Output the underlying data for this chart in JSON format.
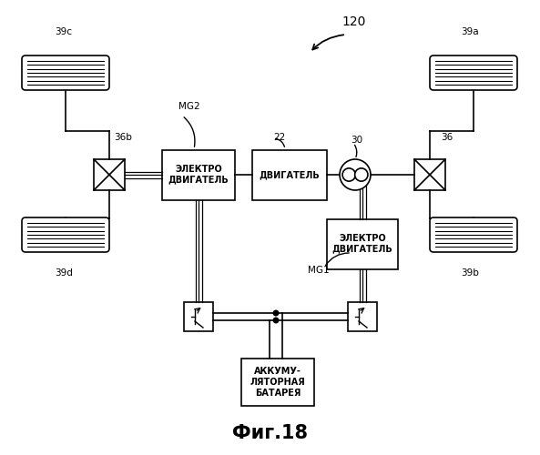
{
  "title": "Фиг.18",
  "bg_color": "#ffffff",
  "label_120": "120",
  "label_22": "22",
  "label_30": "30",
  "label_MG2": "MG2",
  "label_MG1": "MG1",
  "label_36b": "36b",
  "label_36": "36",
  "label_39a": "39a",
  "label_39b": "39b",
  "label_39c": "39c",
  "label_39d": "39d",
  "label_motor": "ДВИГАТЕЛЬ",
  "label_emotor1": "ЭЛЕКТРО\nДВИГАТЕЛЬ",
  "label_emotor2": "ЭЛЕКТРО\nДВИГАТЕЛЬ",
  "label_battery": "АККУМУ-\nЛЯТОРНАЯ\nБАТАРЕЯ"
}
